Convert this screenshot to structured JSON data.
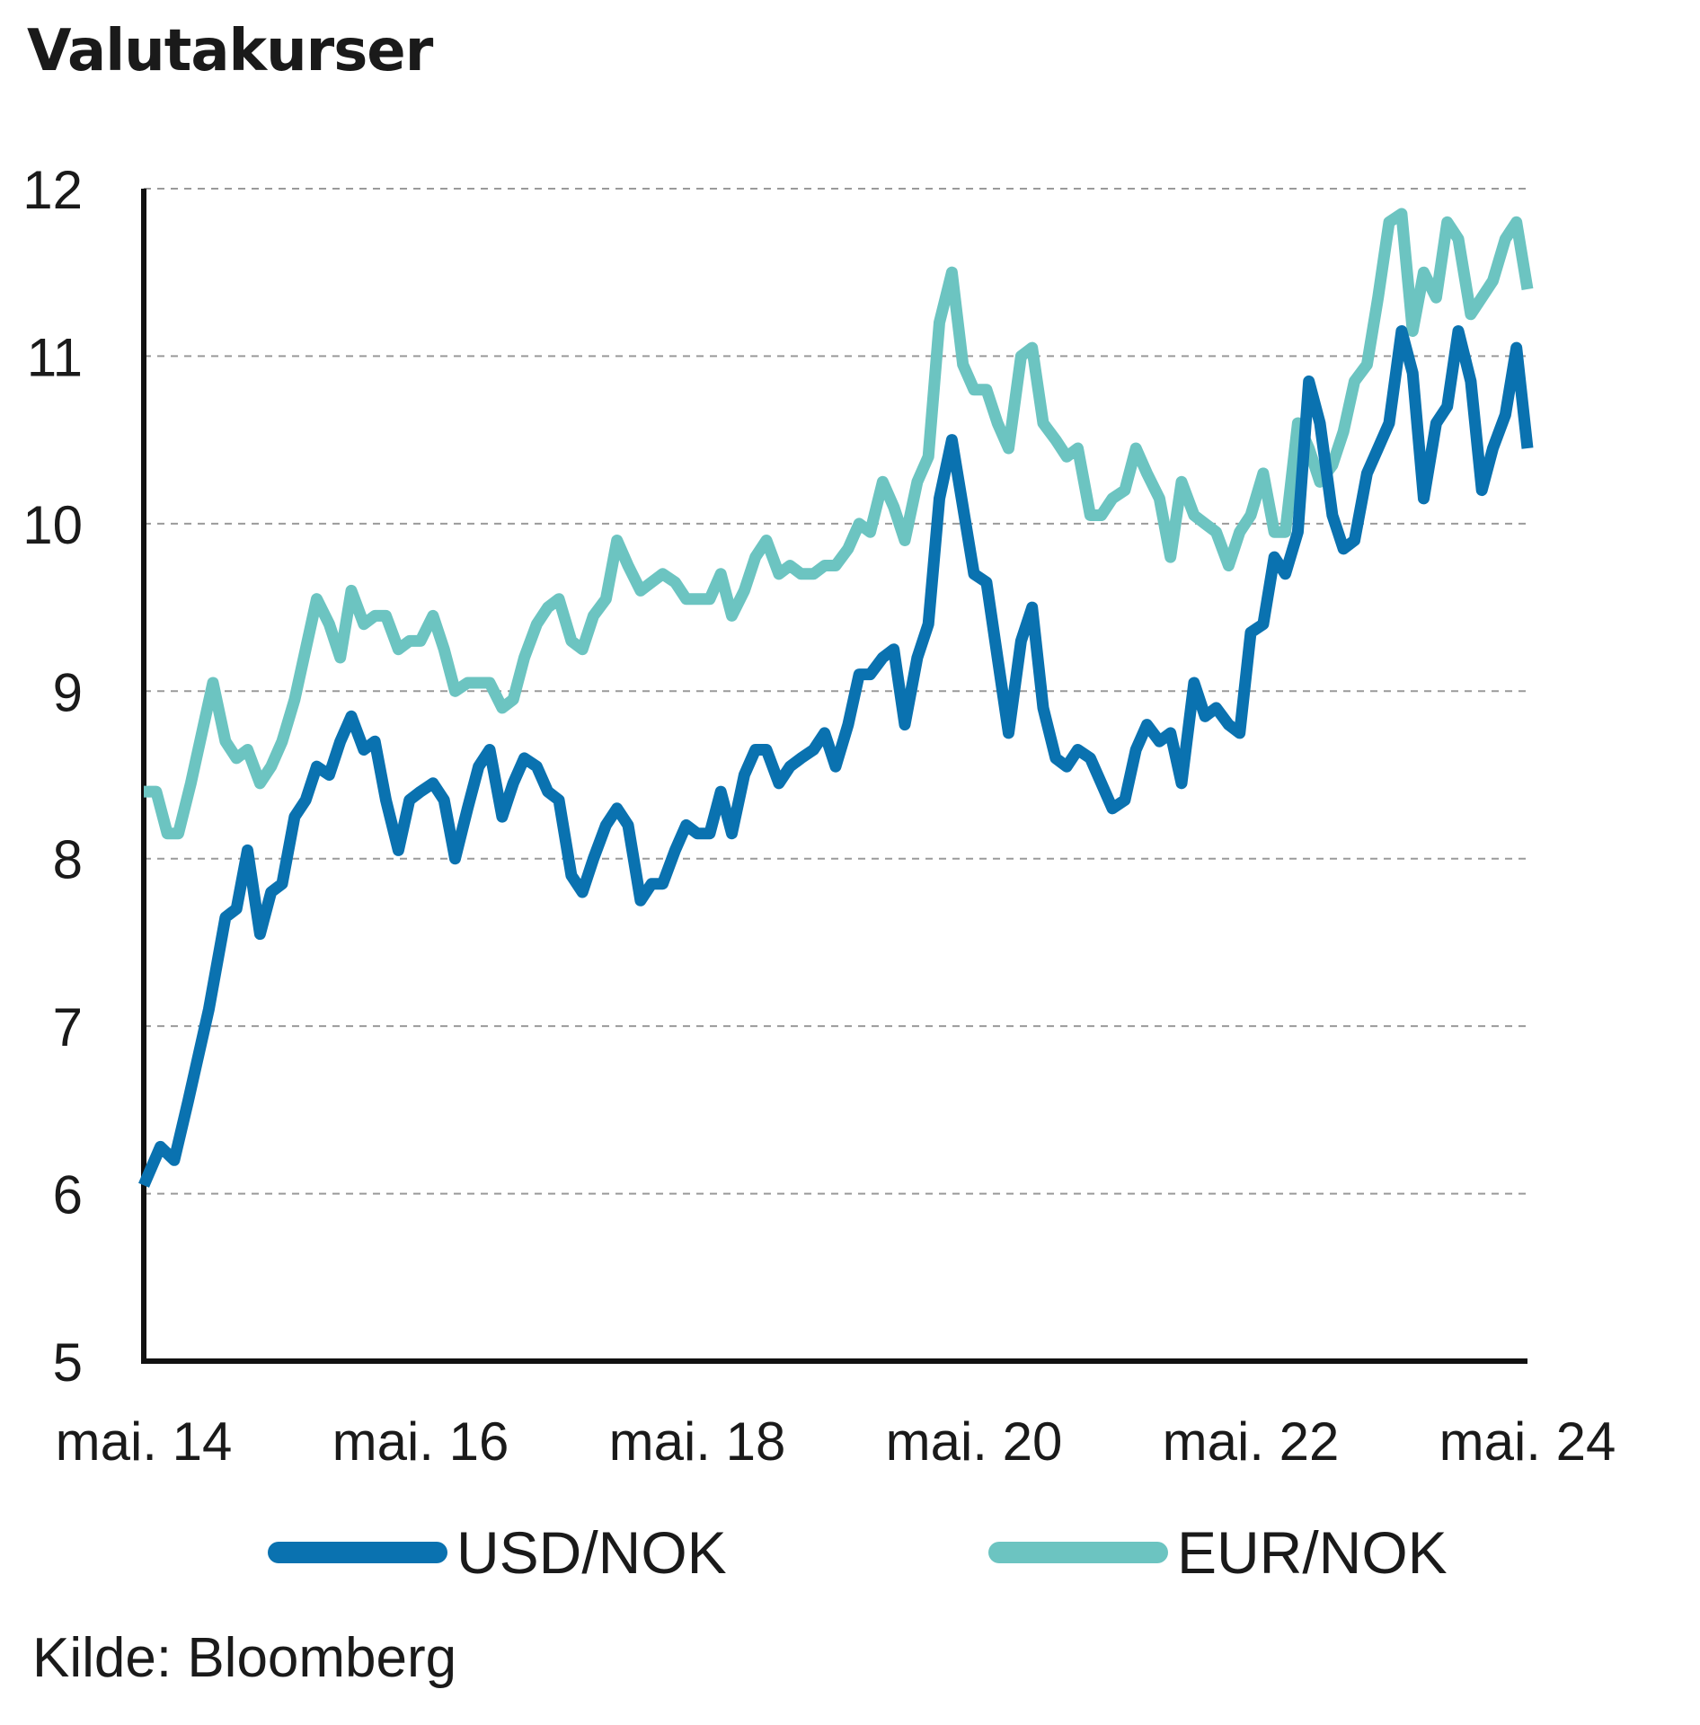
{
  "chart_data": {
    "type": "line",
    "title": "Valutakurser",
    "xlabel": "",
    "ylabel": "",
    "ylim": [
      5,
      12
    ],
    "yticks": [
      5,
      6,
      7,
      8,
      9,
      10,
      11,
      12
    ],
    "xlim": [
      2014.33,
      2024.33
    ],
    "xticks": [
      {
        "x": 2014.33,
        "label": "mai. 14"
      },
      {
        "x": 2016.33,
        "label": "mai. 16"
      },
      {
        "x": 2018.33,
        "label": "mai. 18"
      },
      {
        "x": 2020.33,
        "label": "mai. 20"
      },
      {
        "x": 2022.33,
        "label": "mai. 22"
      },
      {
        "x": 2024.33,
        "label": "mai. 24"
      }
    ],
    "grid": "horizontal-dashed",
    "legend": "bottom",
    "series": [
      {
        "name": "USD/NOK",
        "color": "#0a72b0",
        "points": [
          [
            2014.33,
            6.05
          ],
          [
            2014.45,
            6.28
          ],
          [
            2014.55,
            6.2
          ],
          [
            2014.65,
            6.55
          ],
          [
            2014.8,
            7.1
          ],
          [
            2014.92,
            7.65
          ],
          [
            2015.0,
            7.7
          ],
          [
            2015.08,
            8.05
          ],
          [
            2015.17,
            7.55
          ],
          [
            2015.25,
            7.8
          ],
          [
            2015.33,
            7.85
          ],
          [
            2015.42,
            8.25
          ],
          [
            2015.5,
            8.35
          ],
          [
            2015.58,
            8.55
          ],
          [
            2015.67,
            8.5
          ],
          [
            2015.75,
            8.7
          ],
          [
            2015.83,
            8.85
          ],
          [
            2015.92,
            8.65
          ],
          [
            2016.0,
            8.7
          ],
          [
            2016.08,
            8.35
          ],
          [
            2016.17,
            8.05
          ],
          [
            2016.25,
            8.35
          ],
          [
            2016.33,
            8.4
          ],
          [
            2016.42,
            8.45
          ],
          [
            2016.5,
            8.35
          ],
          [
            2016.58,
            8.0
          ],
          [
            2016.67,
            8.3
          ],
          [
            2016.75,
            8.55
          ],
          [
            2016.83,
            8.65
          ],
          [
            2016.92,
            8.25
          ],
          [
            2017.0,
            8.45
          ],
          [
            2017.08,
            8.6
          ],
          [
            2017.17,
            8.55
          ],
          [
            2017.25,
            8.4
          ],
          [
            2017.33,
            8.35
          ],
          [
            2017.42,
            7.9
          ],
          [
            2017.5,
            7.8
          ],
          [
            2017.58,
            8.0
          ],
          [
            2017.67,
            8.2
          ],
          [
            2017.75,
            8.3
          ],
          [
            2017.83,
            8.2
          ],
          [
            2017.92,
            7.75
          ],
          [
            2018.0,
            7.85
          ],
          [
            2018.08,
            7.85
          ],
          [
            2018.17,
            8.05
          ],
          [
            2018.25,
            8.2
          ],
          [
            2018.33,
            8.15
          ],
          [
            2018.42,
            8.15
          ],
          [
            2018.5,
            8.4
          ],
          [
            2018.58,
            8.15
          ],
          [
            2018.67,
            8.5
          ],
          [
            2018.75,
            8.65
          ],
          [
            2018.83,
            8.65
          ],
          [
            2018.92,
            8.45
          ],
          [
            2019.0,
            8.55
          ],
          [
            2019.08,
            8.6
          ],
          [
            2019.17,
            8.65
          ],
          [
            2019.25,
            8.75
          ],
          [
            2019.33,
            8.55
          ],
          [
            2019.42,
            8.8
          ],
          [
            2019.5,
            9.1
          ],
          [
            2019.58,
            9.1
          ],
          [
            2019.67,
            9.2
          ],
          [
            2019.75,
            9.25
          ],
          [
            2019.83,
            8.8
          ],
          [
            2019.92,
            9.2
          ],
          [
            2020.0,
            9.4
          ],
          [
            2020.08,
            10.15
          ],
          [
            2020.17,
            10.5
          ],
          [
            2020.25,
            10.1
          ],
          [
            2020.33,
            9.7
          ],
          [
            2020.42,
            9.65
          ],
          [
            2020.5,
            9.2
          ],
          [
            2020.58,
            8.75
          ],
          [
            2020.67,
            9.3
          ],
          [
            2020.75,
            9.5
          ],
          [
            2020.83,
            8.9
          ],
          [
            2020.92,
            8.6
          ],
          [
            2021.0,
            8.55
          ],
          [
            2021.08,
            8.65
          ],
          [
            2021.17,
            8.6
          ],
          [
            2021.25,
            8.45
          ],
          [
            2021.33,
            8.3
          ],
          [
            2021.42,
            8.35
          ],
          [
            2021.5,
            8.65
          ],
          [
            2021.58,
            8.8
          ],
          [
            2021.67,
            8.7
          ],
          [
            2021.75,
            8.75
          ],
          [
            2021.83,
            8.45
          ],
          [
            2021.92,
            9.05
          ],
          [
            2022.0,
            8.85
          ],
          [
            2022.08,
            8.9
          ],
          [
            2022.17,
            8.8
          ],
          [
            2022.25,
            8.75
          ],
          [
            2022.33,
            9.35
          ],
          [
            2022.42,
            9.4
          ],
          [
            2022.5,
            9.8
          ],
          [
            2022.58,
            9.7
          ],
          [
            2022.67,
            9.95
          ],
          [
            2022.75,
            10.85
          ],
          [
            2022.83,
            10.6
          ],
          [
            2022.92,
            10.05
          ],
          [
            2023.0,
            9.85
          ],
          [
            2023.08,
            9.9
          ],
          [
            2023.17,
            10.3
          ],
          [
            2023.25,
            10.45
          ],
          [
            2023.33,
            10.6
          ],
          [
            2023.42,
            11.15
          ],
          [
            2023.5,
            10.9
          ],
          [
            2023.58,
            10.15
          ],
          [
            2023.67,
            10.6
          ],
          [
            2023.75,
            10.7
          ],
          [
            2023.83,
            11.15
          ],
          [
            2023.92,
            10.85
          ],
          [
            2024.0,
            10.2
          ],
          [
            2024.08,
            10.45
          ],
          [
            2024.17,
            10.65
          ],
          [
            2024.25,
            11.05
          ],
          [
            2024.33,
            10.45
          ]
        ]
      },
      {
        "name": "EUR/NOK",
        "color": "#6cc4c1",
        "points": [
          [
            2014.33,
            8.4
          ],
          [
            2014.42,
            8.4
          ],
          [
            2014.5,
            8.15
          ],
          [
            2014.58,
            8.15
          ],
          [
            2014.67,
            8.45
          ],
          [
            2014.75,
            8.75
          ],
          [
            2014.83,
            9.05
          ],
          [
            2014.92,
            8.7
          ],
          [
            2015.0,
            8.6
          ],
          [
            2015.08,
            8.65
          ],
          [
            2015.17,
            8.45
          ],
          [
            2015.25,
            8.55
          ],
          [
            2015.33,
            8.7
          ],
          [
            2015.42,
            8.95
          ],
          [
            2015.5,
            9.25
          ],
          [
            2015.58,
            9.55
          ],
          [
            2015.67,
            9.4
          ],
          [
            2015.75,
            9.2
          ],
          [
            2015.83,
            9.6
          ],
          [
            2015.92,
            9.4
          ],
          [
            2016.0,
            9.45
          ],
          [
            2016.08,
            9.45
          ],
          [
            2016.17,
            9.25
          ],
          [
            2016.25,
            9.3
          ],
          [
            2016.33,
            9.3
          ],
          [
            2016.42,
            9.45
          ],
          [
            2016.5,
            9.25
          ],
          [
            2016.58,
            9.0
          ],
          [
            2016.67,
            9.05
          ],
          [
            2016.75,
            9.05
          ],
          [
            2016.83,
            9.05
          ],
          [
            2016.92,
            8.9
          ],
          [
            2017.0,
            8.95
          ],
          [
            2017.08,
            9.2
          ],
          [
            2017.17,
            9.4
          ],
          [
            2017.25,
            9.5
          ],
          [
            2017.33,
            9.55
          ],
          [
            2017.42,
            9.3
          ],
          [
            2017.5,
            9.25
          ],
          [
            2017.58,
            9.45
          ],
          [
            2017.67,
            9.55
          ],
          [
            2017.75,
            9.9
          ],
          [
            2017.83,
            9.75
          ],
          [
            2017.92,
            9.6
          ],
          [
            2018.0,
            9.65
          ],
          [
            2018.08,
            9.7
          ],
          [
            2018.17,
            9.65
          ],
          [
            2018.25,
            9.55
          ],
          [
            2018.33,
            9.55
          ],
          [
            2018.42,
            9.55
          ],
          [
            2018.5,
            9.7
          ],
          [
            2018.58,
            9.45
          ],
          [
            2018.67,
            9.6
          ],
          [
            2018.75,
            9.8
          ],
          [
            2018.83,
            9.9
          ],
          [
            2018.92,
            9.7
          ],
          [
            2019.0,
            9.75
          ],
          [
            2019.08,
            9.7
          ],
          [
            2019.17,
            9.7
          ],
          [
            2019.25,
            9.75
          ],
          [
            2019.33,
            9.75
          ],
          [
            2019.42,
            9.85
          ],
          [
            2019.5,
            10.0
          ],
          [
            2019.58,
            9.95
          ],
          [
            2019.67,
            10.25
          ],
          [
            2019.75,
            10.1
          ],
          [
            2019.83,
            9.9
          ],
          [
            2019.92,
            10.25
          ],
          [
            2020.0,
            10.4
          ],
          [
            2020.08,
            11.2
          ],
          [
            2020.17,
            11.5
          ],
          [
            2020.25,
            10.95
          ],
          [
            2020.33,
            10.8
          ],
          [
            2020.42,
            10.8
          ],
          [
            2020.5,
            10.6
          ],
          [
            2020.58,
            10.45
          ],
          [
            2020.67,
            11.0
          ],
          [
            2020.75,
            11.05
          ],
          [
            2020.83,
            10.6
          ],
          [
            2020.92,
            10.5
          ],
          [
            2021.0,
            10.4
          ],
          [
            2021.08,
            10.45
          ],
          [
            2021.17,
            10.05
          ],
          [
            2021.25,
            10.05
          ],
          [
            2021.33,
            10.15
          ],
          [
            2021.42,
            10.2
          ],
          [
            2021.5,
            10.45
          ],
          [
            2021.58,
            10.3
          ],
          [
            2021.67,
            10.15
          ],
          [
            2021.75,
            9.8
          ],
          [
            2021.83,
            10.25
          ],
          [
            2021.92,
            10.05
          ],
          [
            2022.0,
            10.0
          ],
          [
            2022.08,
            9.95
          ],
          [
            2022.17,
            9.75
          ],
          [
            2022.25,
            9.95
          ],
          [
            2022.33,
            10.05
          ],
          [
            2022.42,
            10.3
          ],
          [
            2022.5,
            9.95
          ],
          [
            2022.58,
            9.95
          ],
          [
            2022.67,
            10.6
          ],
          [
            2022.75,
            10.45
          ],
          [
            2022.83,
            10.25
          ],
          [
            2022.92,
            10.35
          ],
          [
            2023.0,
            10.55
          ],
          [
            2023.08,
            10.85
          ],
          [
            2023.17,
            10.95
          ],
          [
            2023.25,
            11.35
          ],
          [
            2023.33,
            11.8
          ],
          [
            2023.42,
            11.85
          ],
          [
            2023.5,
            11.15
          ],
          [
            2023.58,
            11.5
          ],
          [
            2023.67,
            11.35
          ],
          [
            2023.75,
            11.8
          ],
          [
            2023.83,
            11.7
          ],
          [
            2023.92,
            11.25
          ],
          [
            2024.0,
            11.35
          ],
          [
            2024.08,
            11.45
          ],
          [
            2024.17,
            11.7
          ],
          [
            2024.25,
            11.8
          ],
          [
            2024.33,
            11.4
          ]
        ]
      }
    ],
    "source": "Kilde: Bloomberg"
  }
}
